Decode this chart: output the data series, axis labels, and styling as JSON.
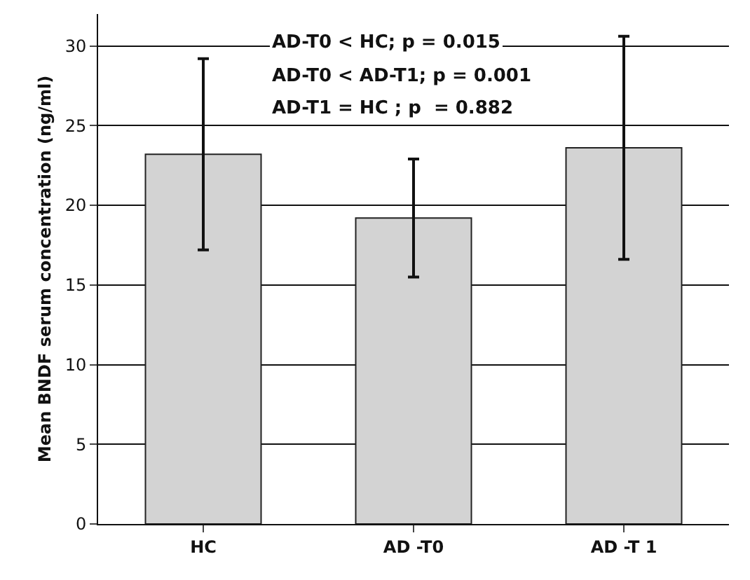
{
  "chart_data": {
    "type": "bar",
    "ylabel": "Mean BNDF serum concentration (ng/ml)",
    "categories": [
      "HC",
      "AD -T0",
      "AD -T 1"
    ],
    "values": [
      23.2,
      19.2,
      23.6
    ],
    "color": "#d3d3d3",
    "errors": [
      [
        17.2,
        29.2
      ],
      [
        15.5,
        22.9
      ],
      [
        16.6,
        30.6
      ]
    ],
    "ylim": [
      0,
      32
    ],
    "yticks": [
      0,
      5,
      10,
      15,
      20,
      25,
      30
    ],
    "grid": "y",
    "annotations": [
      "AD-T0 < HC; p = 0.015",
      "AD-T0 < AD-T1; p = 0.001",
      "AD-T1 = HC ; p  = 0.882"
    ]
  }
}
